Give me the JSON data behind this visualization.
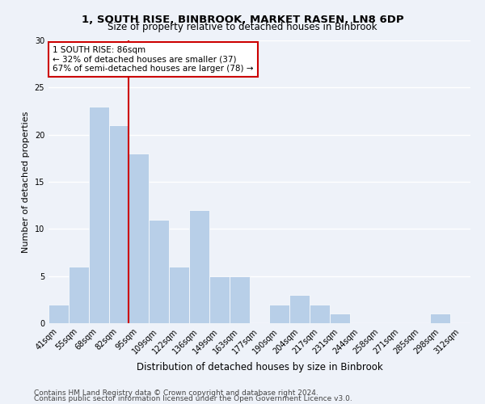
{
  "title1": "1, SOUTH RISE, BINBROOK, MARKET RASEN, LN8 6DP",
  "title2": "Size of property relative to detached houses in Binbrook",
  "xlabel": "Distribution of detached houses by size in Binbrook",
  "ylabel": "Number of detached properties",
  "categories": [
    "41sqm",
    "55sqm",
    "68sqm",
    "82sqm",
    "95sqm",
    "109sqm",
    "122sqm",
    "136sqm",
    "149sqm",
    "163sqm",
    "177sqm",
    "190sqm",
    "204sqm",
    "217sqm",
    "231sqm",
    "244sqm",
    "258sqm",
    "271sqm",
    "285sqm",
    "298sqm",
    "312sqm"
  ],
  "values": [
    2,
    6,
    23,
    21,
    18,
    11,
    6,
    12,
    5,
    5,
    0,
    2,
    3,
    2,
    1,
    0,
    0,
    0,
    0,
    1,
    0
  ],
  "bar_color": "#b8cfe8",
  "bar_edge_color": "#ffffff",
  "bar_width": 1.0,
  "vline_x": 3.5,
  "vline_color": "#cc0000",
  "annotation_text": "1 SOUTH RISE: 86sqm\n← 32% of detached houses are smaller (37)\n67% of semi-detached houses are larger (78) →",
  "annotation_box_color": "#ffffff",
  "annotation_box_edge_color": "#cc0000",
  "ylim": [
    0,
    30
  ],
  "yticks": [
    0,
    5,
    10,
    15,
    20,
    25,
    30
  ],
  "footer1": "Contains HM Land Registry data © Crown copyright and database right 2024.",
  "footer2": "Contains public sector information licensed under the Open Government Licence v3.0.",
  "bg_color": "#eef2f9",
  "grid_color": "#ffffff",
  "title1_fontsize": 9.5,
  "title2_fontsize": 8.5,
  "xlabel_fontsize": 8.5,
  "ylabel_fontsize": 8,
  "tick_fontsize": 7,
  "annotation_fontsize": 7.5,
  "footer_fontsize": 6.5
}
